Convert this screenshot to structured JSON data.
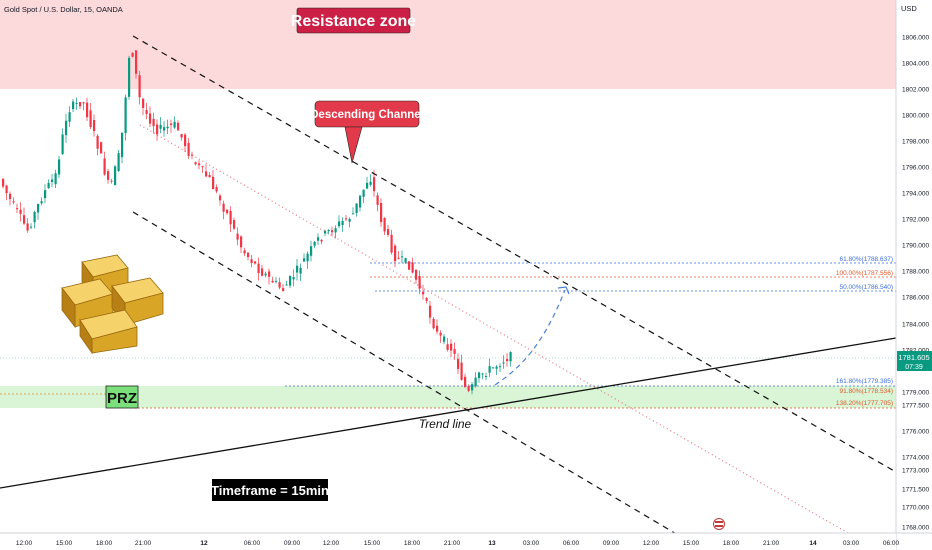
{
  "header": {
    "symbol_title": "Gold Spot / U.S. Dollar, 15, OANDA",
    "currency": "USD"
  },
  "annotations": {
    "resistance_zone": "Resistance zone",
    "descending_channel": "Descending Channel",
    "prz": "PRZ",
    "trend_line": "Trend line",
    "timeframe": "Timeframe = 15min"
  },
  "price_axis": {
    "ticks": [
      "1806.000",
      "1804.000",
      "1802.000",
      "1800.000",
      "1798.000",
      "1796.000",
      "1794.000",
      "1792.000",
      "1790.000",
      "1788.000",
      "1786.000",
      "1784.000",
      "1782.000",
      "1779.000",
      "1777.500",
      "1776.000",
      "1774.000",
      "1773.000",
      "1771.500",
      "1770.000",
      "1768.000"
    ],
    "last_price": "1781.605",
    "countdown": "07:39"
  },
  "fib_levels": [
    {
      "label": "61.80%(1788.637)",
      "color": "#3b6fd8"
    },
    {
      "label": "100.00%(1787.556)",
      "color": "#e05a2b"
    },
    {
      "label": "50.00%(1786.540)",
      "color": "#3b6fd8"
    },
    {
      "label": "161.80%(1779.385)",
      "color": "#3b6fd8"
    },
    {
      "label": "91.80%(1778.534)",
      "color": "#e05a2b"
    },
    {
      "label": "138.20%(1777.705)",
      "color": "#e05a2b"
    }
  ],
  "time_axis": [
    "12:00",
    "15:00",
    "18:00",
    "21:00",
    "12",
    "06:00",
    "09:00",
    "12:00",
    "15:00",
    "18:00",
    "21:00",
    "13",
    "03:00",
    "06:00",
    "09:00",
    "12:00",
    "15:00",
    "18:00",
    "21:00",
    "14",
    "03:00",
    "06:00"
  ],
  "colors": {
    "up": "#089981",
    "down": "#f23645",
    "resistance_fill": "#fcd9db",
    "prz_fill": "#d6f5d6"
  }
}
